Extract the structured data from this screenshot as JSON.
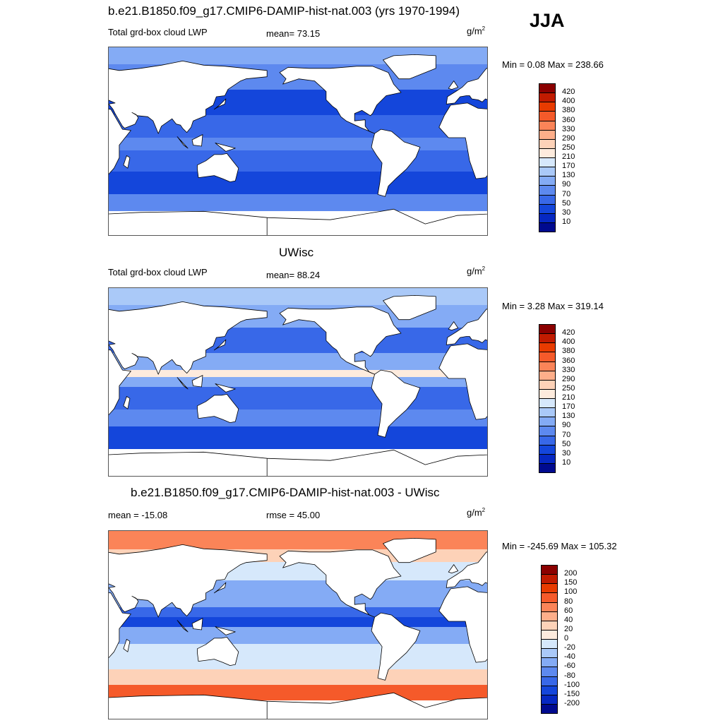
{
  "season": "JJA",
  "units_main": "g/m",
  "units_exp": "2",
  "panels": [
    {
      "title": "b.e21.B1850.f09_g17.CMIP6-DAMIP-hist-nat.003 (yrs 1970-1994)",
      "left_label": "Total grd-box cloud LWP",
      "stat_label": "mean=  73.15",
      "minmax": "Min =   0.08 Max = 238.66",
      "field": "model"
    },
    {
      "title": "UWisc",
      "left_label": "Total grd-box cloud LWP",
      "stat_label": "mean=  88.24",
      "minmax": "Min =   3.28 Max = 319.14",
      "field": "obs"
    },
    {
      "title": "b.e21.B1850.f09_g17.CMIP6-DAMIP-hist-nat.003 - UWisc",
      "left_label": "mean = -15.08",
      "stat_label": "rmse =  45.00",
      "minmax": "Min = -245.69 Max = 105.32",
      "field": "diff"
    }
  ],
  "colorbar_abs": {
    "levels": [
      "420",
      "400",
      "380",
      "360",
      "330",
      "290",
      "250",
      "210",
      "170",
      "130",
      "90",
      "70",
      "50",
      "30",
      "10"
    ],
    "colors": [
      "#8b0000",
      "#c11b00",
      "#e83b00",
      "#f55a2a",
      "#fb8458",
      "#fdae8a",
      "#fdd2b8",
      "#fdebdd",
      "#d6e8fb",
      "#aac9f8",
      "#84abf5",
      "#5d89ef",
      "#3868e8",
      "#1446db",
      "#0628c2",
      "#000a8f"
    ]
  },
  "colorbar_diff": {
    "levels": [
      "200",
      "150",
      "100",
      "80",
      "60",
      "40",
      "20",
      "0",
      "-20",
      "-40",
      "-60",
      "-80",
      "-100",
      "-150",
      "-200"
    ],
    "colors": [
      "#8b0000",
      "#c11b00",
      "#e83b00",
      "#f55a2a",
      "#fb8458",
      "#fdae8a",
      "#fdd2b8",
      "#fdebdd",
      "#d6e8fb",
      "#aac9f8",
      "#84abf5",
      "#5d89ef",
      "#3868e8",
      "#1446db",
      "#0628c2",
      "#000a8f"
    ]
  }
}
